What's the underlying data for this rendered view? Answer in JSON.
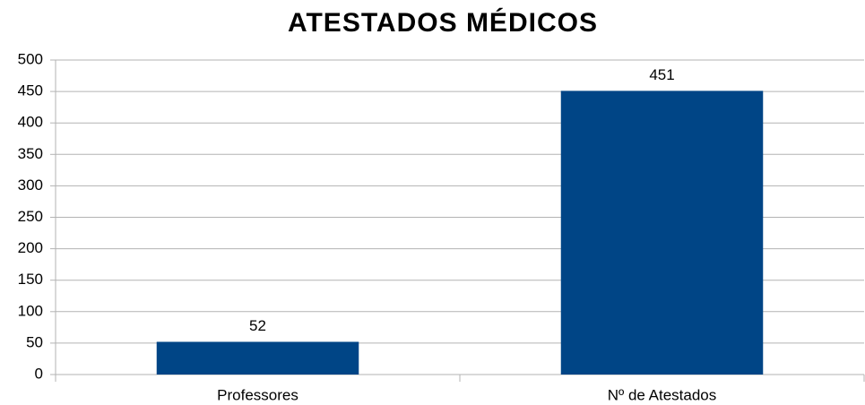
{
  "chart_data": {
    "type": "bar",
    "title": "ATESTADOS MÉDICOS",
    "categories": [
      "Professores",
      "Nº de Atestados"
    ],
    "values": [
      52,
      451
    ],
    "color": "#004586",
    "ylim": [
      0,
      500
    ],
    "yticks": [
      0,
      50,
      100,
      150,
      200,
      250,
      300,
      350,
      400,
      450,
      500
    ],
    "grid": true
  }
}
